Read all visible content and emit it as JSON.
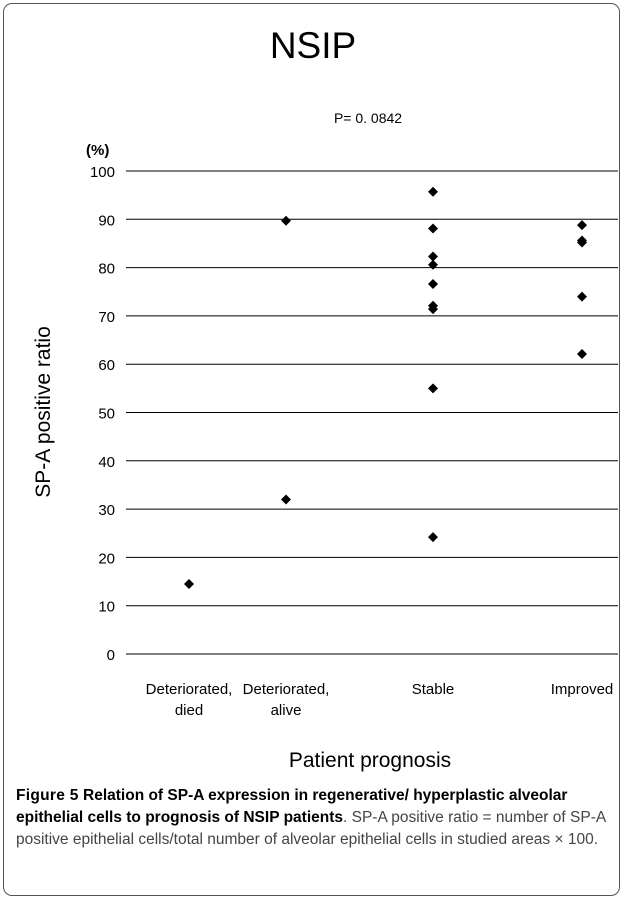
{
  "chart_data": {
    "type": "scatter",
    "title": "NSIP",
    "annotation": "P= 0. 0842",
    "xlabel": "Patient prognosis",
    "ylabel": "SP-A positive ratio",
    "yunit": "(%)",
    "ylim": [
      0,
      100
    ],
    "yticks": [
      0,
      10,
      20,
      30,
      40,
      50,
      60,
      70,
      80,
      90,
      100
    ],
    "grid": true,
    "categories": [
      [
        "Deteriorated,",
        "died"
      ],
      [
        "Deteriorated,",
        "alive"
      ],
      [
        "Stable"
      ],
      [
        "Improved"
      ]
    ],
    "points": [
      {
        "category": 0,
        "y": 14.5
      },
      {
        "category": 1,
        "y": 89.7
      },
      {
        "category": 1,
        "y": 32.0
      },
      {
        "category": 2,
        "y": 95.7
      },
      {
        "category": 2,
        "y": 88.1
      },
      {
        "category": 2,
        "y": 82.3
      },
      {
        "category": 2,
        "y": 80.6
      },
      {
        "category": 2,
        "y": 76.6
      },
      {
        "category": 2,
        "y": 72.1
      },
      {
        "category": 2,
        "y": 71.4
      },
      {
        "category": 2,
        "y": 55.0
      },
      {
        "category": 2,
        "y": 24.2
      },
      {
        "category": 3,
        "y": 88.8
      },
      {
        "category": 3,
        "y": 85.6
      },
      {
        "category": 3,
        "y": 85.2
      },
      {
        "category": 3,
        "y": 74.0
      },
      {
        "category": 3,
        "y": 62.1
      }
    ],
    "marker_color": "#000000"
  },
  "caption": {
    "label": "Figure 5",
    "title": "Relation of SP-A expression in regenerative/ hyperplastic alveolar epithelial cells to prognosis of NSIP patients",
    "body": ". SP-A positive ratio = number of SP-A positive epithelial cells/total number of alveolar epithelial cells in studied areas × 100."
  }
}
